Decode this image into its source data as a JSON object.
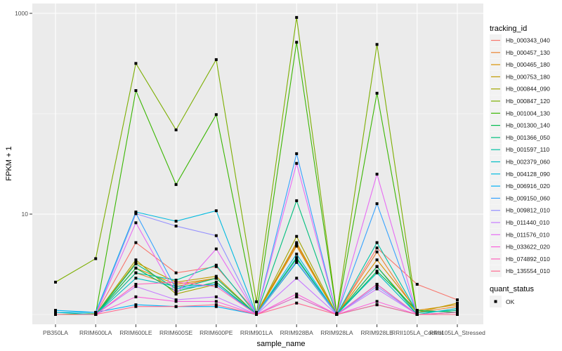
{
  "chart_data": {
    "type": "line",
    "xlabel": "sample_name",
    "ylabel": "FPKM + 1",
    "y_scale": "log10",
    "ylim": [
      0.8,
      1250
    ],
    "y_ticks": [
      10,
      1000
    ],
    "y_tick_labels": [
      "10",
      "1000"
    ],
    "grid": true,
    "legend_placement": "right",
    "categories": [
      "PB350LA",
      "RRIM600LA",
      "RRIM600LE",
      "RRIM600SE",
      "RRIM600PE",
      "RRIM901LA",
      "RRIM928BA",
      "RRIM928LA",
      "RRIM928LE",
      "RRII105LA_Control",
      "RRII105LA_Stressed"
    ],
    "color_legend_title": "tracking_id",
    "shape_legend_title": "quant_status",
    "shape_legend_items": [
      "OK"
    ],
    "series": [
      {
        "name": "Hb_000343_040",
        "color": "#F8766D",
        "values": [
          1,
          1,
          5.2,
          2.6,
          3.0,
          1.05,
          5.0,
          1,
          4.6,
          2.0,
          1.4
        ]
      },
      {
        "name": "Hb_000457_130",
        "color": "#EA8331",
        "values": [
          1,
          1,
          2.6,
          1.9,
          2.3,
          1,
          5.0,
          1,
          4.2,
          1.05,
          1.2
        ]
      },
      {
        "name": "Hb_000465_180",
        "color": "#D89000",
        "values": [
          1,
          1,
          2.9,
          2.0,
          2.3,
          1,
          4.8,
          1,
          3.5,
          1.1,
          1.25
        ]
      },
      {
        "name": "Hb_000753_180",
        "color": "#C09B00",
        "values": [
          1,
          1,
          3.3,
          2.1,
          2.4,
          1,
          5.2,
          1,
          3.0,
          1.05,
          1.3
        ]
      },
      {
        "name": "Hb_000844_090",
        "color": "#A3A500",
        "values": [
          1,
          1,
          3.5,
          1.6,
          2.0,
          1,
          6.0,
          1,
          3.0,
          1.05,
          1.1
        ]
      },
      {
        "name": "Hb_000847_120",
        "color": "#7CAE00",
        "values": [
          2.1,
          3.6,
          317,
          69,
          346,
          1.34,
          910,
          1.03,
          490,
          1,
          1
        ]
      },
      {
        "name": "Hb_001004_130",
        "color": "#39B600",
        "values": [
          1,
          1.02,
          170,
          19.7,
          98,
          1,
          515,
          1,
          160,
          1,
          1
        ]
      },
      {
        "name": "Hb_001300_140",
        "color": "#00BB4E",
        "values": [
          1,
          1,
          2.9,
          1.7,
          2.1,
          1,
          3.6,
          1,
          2.7,
          1.1,
          1.05
        ]
      },
      {
        "name": "Hb_001366_050",
        "color": "#00BF7D",
        "values": [
          1,
          1,
          3.2,
          1.8,
          2.3,
          1,
          13.6,
          1,
          3.0,
          1,
          1.05
        ]
      },
      {
        "name": "Hb_001597_110",
        "color": "#00C1A3",
        "values": [
          1,
          1,
          2.6,
          2.2,
          3.1,
          1,
          3.7,
          1,
          5.2,
          1.05,
          1.1
        ]
      },
      {
        "name": "Hb_002379_060",
        "color": "#00BFC4",
        "values": [
          1.05,
          1,
          2.3,
          1.9,
          2.0,
          1,
          3.3,
          1,
          2.6,
          1,
          1.15
        ]
      },
      {
        "name": "Hb_004128_090",
        "color": "#00BAE0",
        "values": [
          1.05,
          1.05,
          10.5,
          8.5,
          10.8,
          1,
          4.0,
          1,
          2.0,
          1,
          1
        ]
      },
      {
        "name": "Hb_006916_020",
        "color": "#00B0F6",
        "values": [
          1.1,
          1.05,
          1.25,
          1.2,
          1.2,
          1,
          1.5,
          1,
          1.25,
          1,
          1
        ]
      },
      {
        "name": "Hb_009150_060",
        "color": "#35A2FF",
        "values": [
          1,
          1,
          10.2,
          1.8,
          2.0,
          1,
          40,
          1,
          12.7,
          1,
          1
        ]
      },
      {
        "name": "Hb_009812_010",
        "color": "#9590FF",
        "values": [
          1,
          1,
          10.1,
          7.6,
          6.1,
          1,
          3.4,
          1,
          1.9,
          1,
          1
        ]
      },
      {
        "name": "Hb_011440_010",
        "color": "#C77CFF",
        "values": [
          1,
          1,
          1.9,
          1.4,
          1.5,
          1,
          2.3,
          1,
          1.8,
          1,
          1
        ]
      },
      {
        "name": "Hb_011576_010",
        "color": "#E76BF3",
        "values": [
          1,
          1,
          8.2,
          1.6,
          4.5,
          1,
          32,
          1,
          25,
          1,
          1
        ]
      },
      {
        "name": "Hb_033622_020",
        "color": "#FA62DB",
        "values": [
          1,
          1,
          1.5,
          1.35,
          1.35,
          1,
          1.6,
          1,
          1.35,
          1,
          1
        ]
      },
      {
        "name": "Hb_074892_010",
        "color": "#FF62BC",
        "values": [
          1,
          1,
          2.0,
          2.1,
          1.9,
          1,
          1.5,
          1,
          2.0,
          1,
          1.05
        ]
      },
      {
        "name": "Hb_135554_010",
        "color": "#FF6C91",
        "values": [
          1,
          1,
          1.2,
          1.2,
          1.25,
          1,
          1.3,
          1,
          1.25,
          1,
          1
        ]
      }
    ]
  }
}
